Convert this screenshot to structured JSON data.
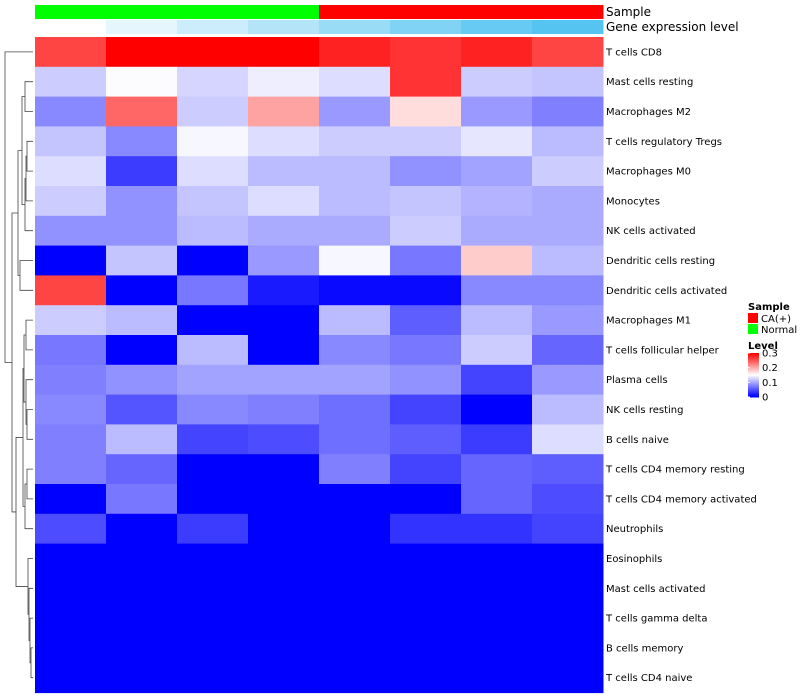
{
  "chart_data": {
    "type": "heatmap",
    "annotation_labels": [
      "Sample",
      "Gene expression level"
    ],
    "sample_groups": [
      "Normal",
      "Normal",
      "Normal",
      "Normal",
      "CA(+)",
      "CA(+)",
      "CA(+)",
      "CA(+)"
    ],
    "gene_expression_level": [
      0.0,
      0.15,
      0.3,
      0.45,
      0.6,
      0.75,
      0.9,
      1.0
    ],
    "sample_group_legend": {
      "title": "Sample",
      "entries": [
        {
          "label": "CA(+)",
          "color": "#ff0000"
        },
        {
          "label": "Normal",
          "color": "#00ff00"
        }
      ]
    },
    "value_legend": {
      "title": "Level",
      "ticks": [
        "0.3",
        "0.2",
        "0.1",
        "0"
      ],
      "tick_values": [
        0.3,
        0.2,
        0.1,
        0
      ],
      "range": [
        0,
        0.3
      ],
      "colors": {
        "low": "#0000ff",
        "mid": "#ffffff",
        "high": "#ff0000"
      }
    },
    "rows": [
      {
        "label": "T cells CD8",
        "values": [
          0.26,
          0.3,
          0.3,
          0.3,
          0.28,
          0.27,
          0.28,
          0.26
        ]
      },
      {
        "label": "Mast cells resting",
        "values": [
          0.12,
          0.148,
          0.125,
          0.14,
          0.13,
          0.27,
          0.12,
          0.115
        ]
      },
      {
        "label": "Macrophages M2",
        "values": [
          0.08,
          0.24,
          0.12,
          0.205,
          0.09,
          0.17,
          0.09,
          0.075
        ]
      },
      {
        "label": "T cells regulatory  Tregs",
        "values": [
          0.115,
          0.08,
          0.145,
          0.13,
          0.12,
          0.12,
          0.135,
          0.11
        ]
      },
      {
        "label": "Macrophages M0",
        "values": [
          0.13,
          0.035,
          0.13,
          0.11,
          0.11,
          0.085,
          0.095,
          0.12
        ]
      },
      {
        "label": "Monocytes",
        "values": [
          0.12,
          0.085,
          0.115,
          0.13,
          0.11,
          0.115,
          0.105,
          0.1
        ]
      },
      {
        "label": "NK cells activated",
        "values": [
          0.085,
          0.085,
          0.11,
          0.1,
          0.1,
          0.12,
          0.1,
          0.1
        ]
      },
      {
        "label": "Dendritic cells resting",
        "values": [
          0.0,
          0.115,
          0.0,
          0.09,
          0.145,
          0.07,
          0.18,
          0.11
        ]
      },
      {
        "label": "Dendritic cells activated",
        "values": [
          0.26,
          0.0,
          0.07,
          0.015,
          0.005,
          0.005,
          0.08,
          0.08
        ]
      },
      {
        "label": "Macrophages M1",
        "values": [
          0.12,
          0.11,
          0.0,
          0.0,
          0.11,
          0.055,
          0.11,
          0.09
        ]
      },
      {
        "label": "T cells follicular helper",
        "values": [
          0.07,
          0.0,
          0.11,
          0.0,
          0.08,
          0.07,
          0.12,
          0.06
        ]
      },
      {
        "label": "Plasma cells",
        "values": [
          0.075,
          0.085,
          0.095,
          0.095,
          0.095,
          0.085,
          0.04,
          0.09
        ]
      },
      {
        "label": "NK cells resting",
        "values": [
          0.08,
          0.05,
          0.08,
          0.075,
          0.065,
          0.04,
          0.0,
          0.11
        ]
      },
      {
        "label": "B cells naive",
        "values": [
          0.075,
          0.11,
          0.04,
          0.045,
          0.065,
          0.055,
          0.035,
          0.13
        ]
      },
      {
        "label": "T cells CD4 memory resting",
        "values": [
          0.075,
          0.06,
          0.0,
          0.0,
          0.075,
          0.04,
          0.06,
          0.055
        ]
      },
      {
        "label": "T cells CD4 memory activated",
        "values": [
          0.0,
          0.07,
          0.0,
          0.0,
          0.0,
          0.0,
          0.06,
          0.045
        ]
      },
      {
        "label": "Neutrophils",
        "values": [
          0.045,
          0.0,
          0.035,
          0.0,
          0.0,
          0.03,
          0.03,
          0.04
        ]
      },
      {
        "label": "Eosinophils",
        "values": [
          0.0,
          0.0,
          0.0,
          0.0,
          0.0,
          0.0,
          0.0,
          0.0
        ]
      },
      {
        "label": "Mast cells activated",
        "values": [
          0.0,
          0.0,
          0.0,
          0.0,
          0.0,
          0.0,
          0.0,
          0.0
        ]
      },
      {
        "label": "T cells gamma delta",
        "values": [
          0.0,
          0.0,
          0.0,
          0.0,
          0.0,
          0.0,
          0.0,
          0.0
        ]
      },
      {
        "label": "B cells memory",
        "values": [
          0.0,
          0.0,
          0.0,
          0.0,
          0.0,
          0.0,
          0.0,
          0.0
        ]
      },
      {
        "label": "T cells CD4 naive",
        "values": [
          0.0,
          0.0,
          0.0,
          0.0,
          0.0,
          0.0,
          0.0,
          0.0
        ]
      }
    ],
    "row_dendrogram": {
      "shown": true,
      "side": "left"
    }
  }
}
